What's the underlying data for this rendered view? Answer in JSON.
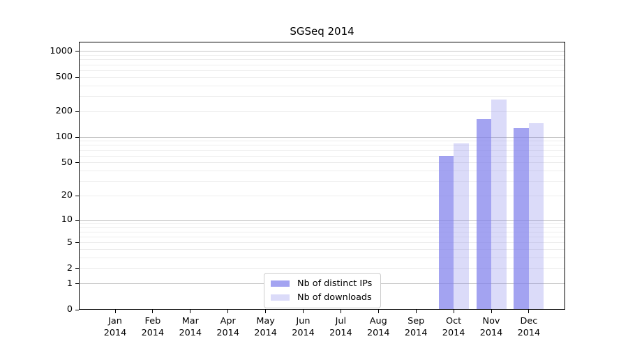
{
  "chart_data": {
    "type": "bar",
    "title": "SGSeq 2014",
    "categories": [
      {
        "month": "Jan",
        "year": "2014"
      },
      {
        "month": "Feb",
        "year": "2014"
      },
      {
        "month": "Mar",
        "year": "2014"
      },
      {
        "month": "Apr",
        "year": "2014"
      },
      {
        "month": "May",
        "year": "2014"
      },
      {
        "month": "Jun",
        "year": "2014"
      },
      {
        "month": "Jul",
        "year": "2014"
      },
      {
        "month": "Aug",
        "year": "2014"
      },
      {
        "month": "Sep",
        "year": "2014"
      },
      {
        "month": "Oct",
        "year": "2014"
      },
      {
        "month": "Nov",
        "year": "2014"
      },
      {
        "month": "Dec",
        "year": "2014"
      }
    ],
    "series": [
      {
        "name": "Nb of distinct IPs",
        "color": "rgba(127,127,235,0.72)",
        "values": [
          0,
          0,
          0,
          0,
          0,
          0,
          0,
          0,
          0,
          60,
          162,
          128
        ]
      },
      {
        "name": "Nb of downloads",
        "color": "rgba(127,127,235,0.28)",
        "values": [
          0,
          0,
          0,
          0,
          0,
          0,
          0,
          0,
          0,
          85,
          275,
          146
        ]
      }
    ],
    "y_scale": "log1p",
    "y_ticks": [
      0,
      1,
      2,
      5,
      10,
      20,
      50,
      100,
      200,
      500,
      1000
    ],
    "y_minor_gridlines": [
      2,
      3,
      4,
      5,
      6,
      7,
      8,
      9,
      20,
      30,
      40,
      50,
      60,
      70,
      80,
      90,
      200,
      300,
      400,
      500,
      600,
      700,
      800,
      900
    ],
    "y_major_gridlines": [
      1,
      10,
      100,
      1000
    ],
    "ylim": [
      0,
      1300
    ],
    "xlabel": "",
    "ylabel": "",
    "grid": "horizontal",
    "legend_position": "bottom-center",
    "colors": {
      "background": "#ffffff",
      "axis": "#000000",
      "text": "#000000",
      "grid_major": "#c6c6c6",
      "grid_minor": "#ededed",
      "legend_border": "#cccccc"
    }
  }
}
